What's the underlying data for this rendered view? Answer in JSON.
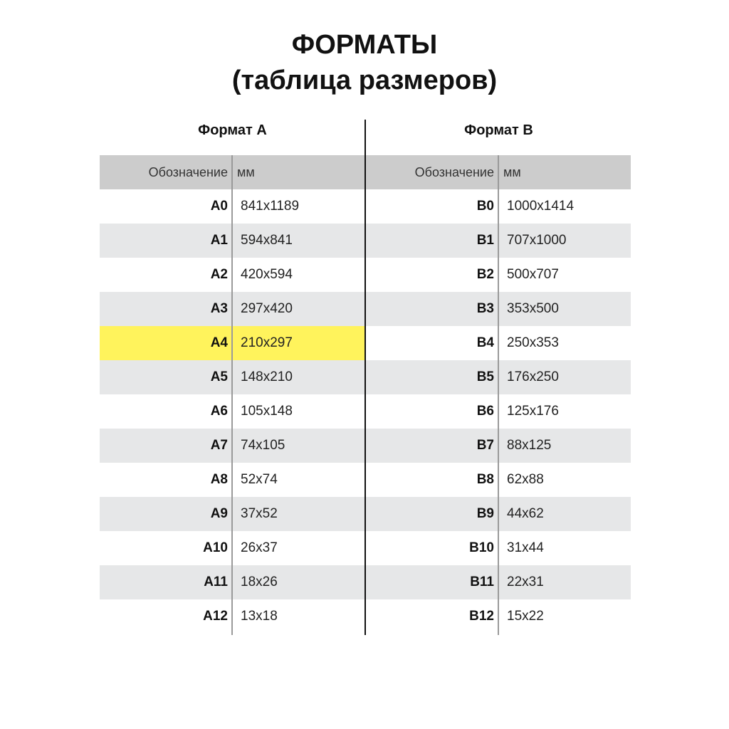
{
  "title": {
    "line1": "ФОРМАТЫ",
    "line2": "(таблица размеров)"
  },
  "colors": {
    "header_bg": "#cccccc",
    "stripe_bg": "#e6e7e8",
    "highlight": "#fff35c"
  },
  "tables": [
    {
      "heading": "Формат А",
      "columns": [
        "Обозначение",
        "мм"
      ],
      "highlighted": "A4",
      "rows": [
        [
          "A0",
          "841x1189"
        ],
        [
          "A1",
          "594x841"
        ],
        [
          "A2",
          "420x594"
        ],
        [
          "A3",
          "297x420"
        ],
        [
          "A4",
          "210x297"
        ],
        [
          "A5",
          "148x210"
        ],
        [
          "A6",
          "105x148"
        ],
        [
          "A7",
          "74x105"
        ],
        [
          "A8",
          "52x74"
        ],
        [
          "A9",
          "37x52"
        ],
        [
          "A10",
          "26x37"
        ],
        [
          "A11",
          "18x26"
        ],
        [
          "A12",
          "13x18"
        ]
      ]
    },
    {
      "heading": "Формат В",
      "columns": [
        "Обозначение",
        "мм"
      ],
      "rows": [
        [
          "B0",
          "1000x1414"
        ],
        [
          "B1",
          "707x1000"
        ],
        [
          "B2",
          "500x707"
        ],
        [
          "B3",
          "353x500"
        ],
        [
          "B4",
          "250x353"
        ],
        [
          "B5",
          "176x250"
        ],
        [
          "B6",
          "125x176"
        ],
        [
          "B7",
          "88x125"
        ],
        [
          "B8",
          "62x88"
        ],
        [
          "B9",
          "44x62"
        ],
        [
          "B10",
          "31x44"
        ],
        [
          "B11",
          "22x31"
        ],
        [
          "B12",
          "15x22"
        ]
      ]
    }
  ]
}
